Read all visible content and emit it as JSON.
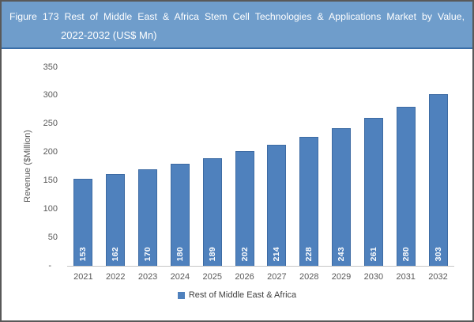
{
  "figure": {
    "header": {
      "title_line1": "Figure 173 Rest of Middle East & Africa Stem Cell Technologies & Applications Market by Value,",
      "title_line2": "2022-2032 (US$ Mn)"
    }
  },
  "chart_data": {
    "type": "bar",
    "title": "Figure 173 Rest of Middle East & Africa Stem Cell Technologies & Applications Market by Value, 2022-2032 (US$ Mn)",
    "categories": [
      "2021",
      "2022",
      "2023",
      "2024",
      "2025",
      "2026",
      "2027",
      "2028",
      "2029",
      "2030",
      "2031",
      "2032"
    ],
    "series": [
      {
        "name": "Rest of Middle East & Africa",
        "values": [
          153,
          162,
          170,
          180,
          189,
          202,
          214,
          228,
          243,
          261,
          280,
          303
        ]
      }
    ],
    "xlabel": "",
    "ylabel": "Revenue ($Million)",
    "ylim": [
      0,
      350
    ],
    "ytick_step": 50,
    "yticks": [
      {
        "value": 0,
        "label": "-"
      },
      {
        "value": 50,
        "label": "50"
      },
      {
        "value": 100,
        "label": "100"
      },
      {
        "value": 150,
        "label": "150"
      },
      {
        "value": 200,
        "label": "200"
      },
      {
        "value": 250,
        "label": "250"
      },
      {
        "value": 300,
        "label": "300"
      },
      {
        "value": 350,
        "label": "350"
      }
    ],
    "grid": false,
    "legend_position": "bottom",
    "value_labels": "inside-base-rotated-90ccw"
  },
  "colors": {
    "header_bg": "#6F9DCB",
    "header_border": "#3A6EA8",
    "header_text": "#FFFFFF",
    "outer_border": "#595959",
    "bar_fill": "#4F81BD",
    "bar_border": "#3D6BA3",
    "bar_label_text": "#FFFFFF",
    "axis_text": "#595959",
    "axis_line": "#C6C6C6",
    "legend_text": "#404040",
    "plot_background": "#FFFFFF"
  }
}
